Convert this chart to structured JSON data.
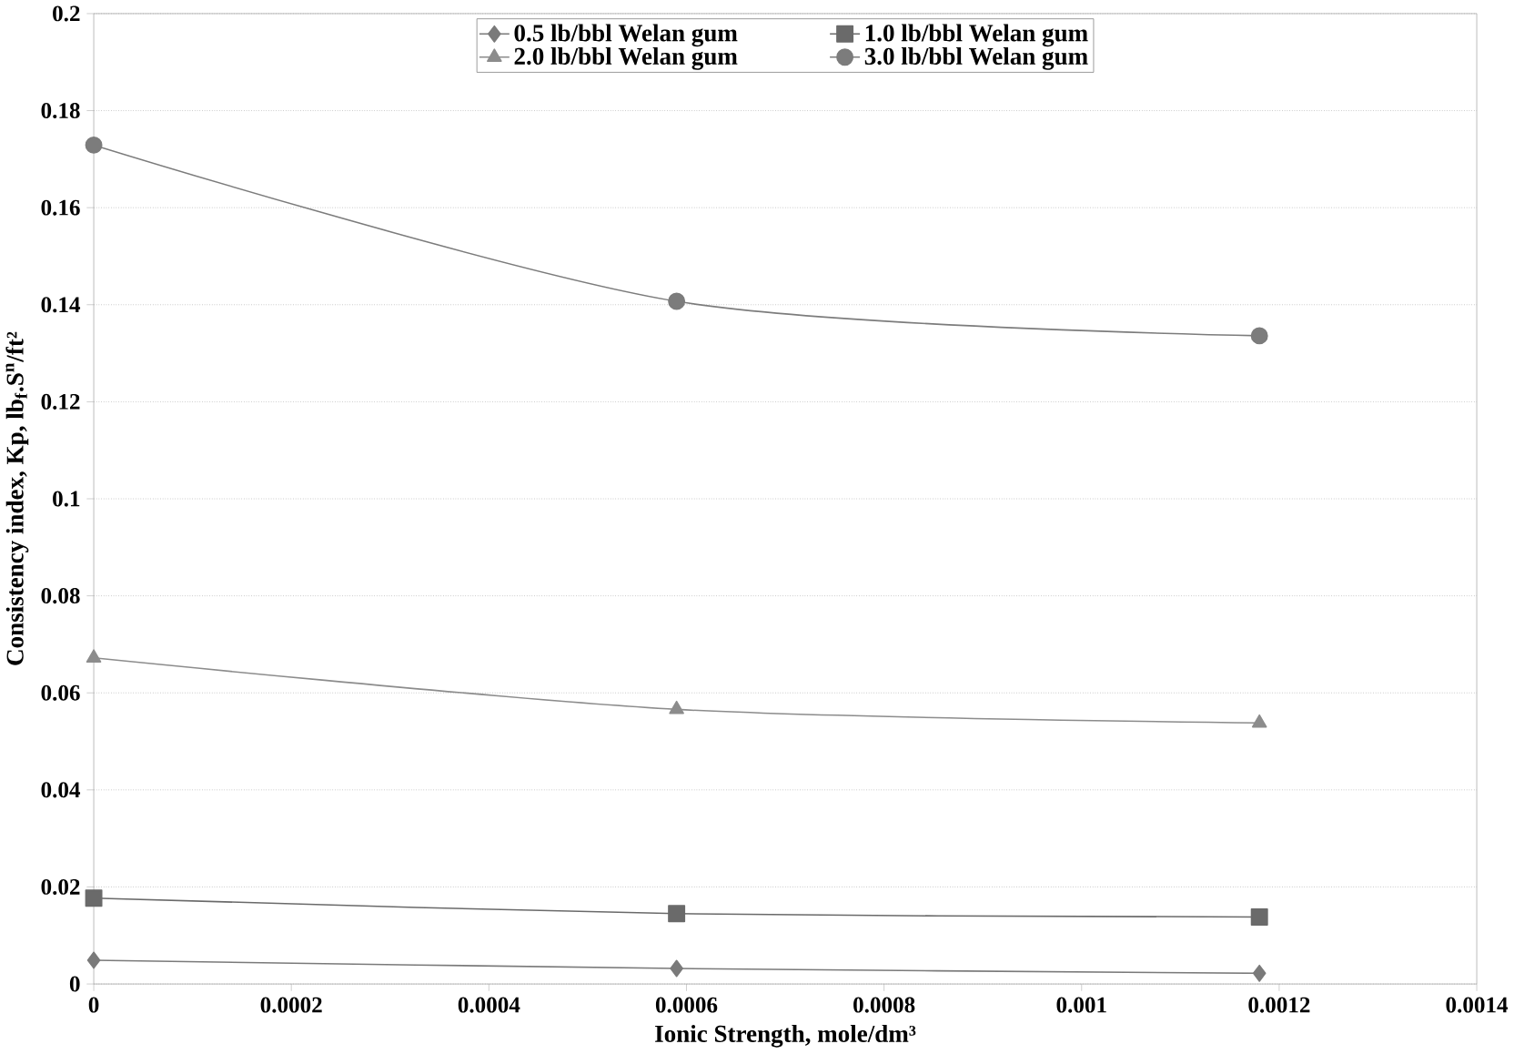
{
  "chart_data": {
    "type": "line",
    "xlabel": "Ionic Strength, mole/dm³",
    "ylabel": "Consistency index, Kp, lb$_{f}$.S$^{n}$/ft²",
    "x": [
      0,
      0.00059,
      0.00118
    ],
    "series": [
      {
        "name": "0.5 lb/bbl Welan gum",
        "color": "#7a7a7a",
        "marker": "diamond",
        "values": [
          0.0049,
          0.0032,
          0.0022
        ]
      },
      {
        "name": "1.0 lb/bbl Welan gum",
        "color": "#6a6a6a",
        "marker": "square",
        "values": [
          0.0177,
          0.0145,
          0.0138
        ]
      },
      {
        "name": "2.0 lb/bbl Welan gum",
        "color": "#8c8c8c",
        "marker": "triangle",
        "values": [
          0.0672,
          0.0566,
          0.0538
        ]
      },
      {
        "name": "3.0 lb/bbl Welan gum",
        "color": "#7c7c7c",
        "marker": "circle",
        "values": [
          0.1729,
          0.1407,
          0.1336
        ]
      }
    ],
    "xlim": [
      0,
      0.0014
    ],
    "xticks": [
      0,
      0.0002,
      0.0004,
      0.0006,
      0.0008,
      0.001,
      0.0012,
      0.0014
    ],
    "ylim": [
      0,
      0.2
    ],
    "yticks": [
      0,
      0.02,
      0.04,
      0.06,
      0.08,
      0.1,
      0.12,
      0.14,
      0.16,
      0.18,
      0.2
    ],
    "grid": "y",
    "legend": "top",
    "line_style": "solid"
  }
}
